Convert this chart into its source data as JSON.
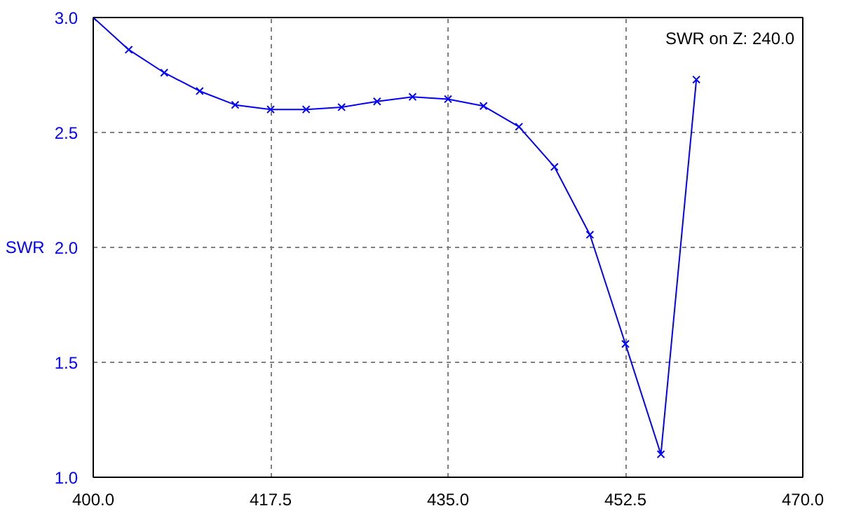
{
  "chart_data": {
    "type": "line",
    "ylabel": "SWR",
    "annotations": [
      "SWR on Z: 240.0"
    ],
    "x": [
      400,
      403.5,
      407,
      410.5,
      414,
      417.5,
      421,
      424.5,
      428,
      431.5,
      435,
      438.5,
      442,
      445.5,
      449,
      452.5,
      456,
      459.5
    ],
    "series": [
      {
        "color": "#0000ff",
        "values": [
          3.0,
          2.86,
          2.76,
          2.68,
          2.62,
          2.6,
          2.6,
          2.61,
          2.635,
          2.655,
          2.645,
          2.615,
          2.525,
          2.35,
          2.055,
          1.58,
          1.1,
          2.73
        ]
      }
    ],
    "xlim": [
      400,
      470
    ],
    "xticks": [
      {
        "value": 400,
        "label": "400.0"
      },
      {
        "value": 417.5,
        "label": "417.5"
      },
      {
        "value": 435,
        "label": "435.0"
      },
      {
        "value": 452.5,
        "label": "452.5"
      },
      {
        "value": 470,
        "label": "470.0"
      }
    ],
    "ylim": [
      1,
      3
    ],
    "yticks": [
      {
        "value": 1,
        "label": "1.0"
      },
      {
        "value": 1.5,
        "label": "1.5"
      },
      {
        "value": 2,
        "label": "2.0"
      },
      {
        "value": 2.5,
        "label": "2.5"
      },
      {
        "value": 3,
        "label": "3.0"
      }
    ],
    "grid": true,
    "marker": "cross",
    "line_style": "solid"
  }
}
